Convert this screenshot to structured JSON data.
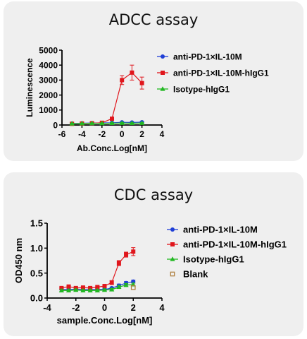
{
  "chart_data": [
    {
      "type": "line",
      "title": "ADCC assay",
      "xlabel": "Ab.Conc.Log[nM]",
      "ylabel": "Luminescence",
      "xlim": [
        -6,
        4
      ],
      "ylim": [
        0,
        5000
      ],
      "xticks": [
        -6,
        -4,
        -2,
        0,
        2,
        4
      ],
      "yticks": [
        0,
        1000,
        2000,
        3000,
        4000,
        5000
      ],
      "legend_position": "right",
      "series": [
        {
          "name": "anti-PD-1×IL-10M",
          "color": "#1f3fd6",
          "marker": "circle",
          "x": [
            -5,
            -4,
            -3,
            -2,
            -1,
            0,
            1,
            2
          ],
          "y": [
            100,
            120,
            130,
            140,
            150,
            180,
            170,
            190
          ],
          "err": [
            30,
            30,
            30,
            30,
            30,
            40,
            30,
            40
          ]
        },
        {
          "name": "anti-PD-1×IL-10M-hIgG1",
          "color": "#e0161c",
          "marker": "square",
          "x": [
            -5,
            -4,
            -3,
            -2,
            -1,
            0,
            1,
            2
          ],
          "y": [
            80,
            100,
            120,
            150,
            420,
            3000,
            3500,
            2800
          ],
          "err": [
            30,
            30,
            30,
            40,
            60,
            300,
            500,
            400
          ]
        },
        {
          "name": "Isotype-hIgG1",
          "color": "#22b822",
          "marker": "triangle",
          "x": [
            -5,
            -4,
            -3,
            -2,
            -1,
            0,
            1,
            2
          ],
          "y": [
            90,
            100,
            110,
            110,
            120,
            130,
            120,
            130
          ],
          "err": [
            30,
            30,
            30,
            30,
            30,
            30,
            30,
            30
          ]
        }
      ]
    },
    {
      "type": "line",
      "title": "CDC assay",
      "xlabel": "sample.Conc.Log[nM]",
      "ylabel": "OD450 nm",
      "xlim": [
        -4,
        4
      ],
      "ylim": [
        0,
        1.5
      ],
      "xticks": [
        -4,
        -2,
        0,
        2,
        4
      ],
      "yticks": [
        0.0,
        0.5,
        1.0,
        1.5
      ],
      "legend_position": "right",
      "series": [
        {
          "name": "anti-PD-1×IL-10M",
          "color": "#1f3fd6",
          "marker": "circle",
          "x": [
            -3,
            -2.5,
            -2,
            -1.5,
            -1,
            -0.5,
            0,
            0.5,
            1,
            1.5,
            2
          ],
          "y": [
            0.18,
            0.17,
            0.18,
            0.17,
            0.17,
            0.18,
            0.17,
            0.2,
            0.25,
            0.3,
            0.33
          ],
          "err": [
            0.02,
            0.02,
            0.02,
            0.02,
            0.02,
            0.02,
            0.02,
            0.02,
            0.03,
            0.03,
            0.03
          ]
        },
        {
          "name": "anti-PD-1×IL-10M-hIgG1",
          "color": "#e0161c",
          "marker": "square",
          "x": [
            -3,
            -2.5,
            -2,
            -1.5,
            -1,
            -0.5,
            0,
            0.5,
            1,
            1.5,
            2
          ],
          "y": [
            0.2,
            0.23,
            0.2,
            0.21,
            0.2,
            0.22,
            0.24,
            0.31,
            0.7,
            0.87,
            0.93
          ],
          "err": [
            0.02,
            0.02,
            0.02,
            0.02,
            0.02,
            0.02,
            0.03,
            0.04,
            0.05,
            0.05,
            0.08
          ]
        },
        {
          "name": "Isotype-hIgG1",
          "color": "#22b822",
          "marker": "triangle",
          "x": [
            -3,
            -2.5,
            -2,
            -1.5,
            -1,
            -0.5,
            0,
            0.5,
            1,
            1.5,
            2
          ],
          "y": [
            0.15,
            0.15,
            0.16,
            0.15,
            0.15,
            0.15,
            0.16,
            0.17,
            0.22,
            0.26,
            0.27
          ],
          "err": [
            0.02,
            0.02,
            0.02,
            0.02,
            0.02,
            0.02,
            0.02,
            0.02,
            0.03,
            0.03,
            0.03
          ]
        },
        {
          "name": "Blank",
          "color": "#b08040",
          "marker": "open-square",
          "x": [
            2
          ],
          "y": [
            0.21
          ],
          "err": [
            0
          ]
        }
      ]
    }
  ]
}
